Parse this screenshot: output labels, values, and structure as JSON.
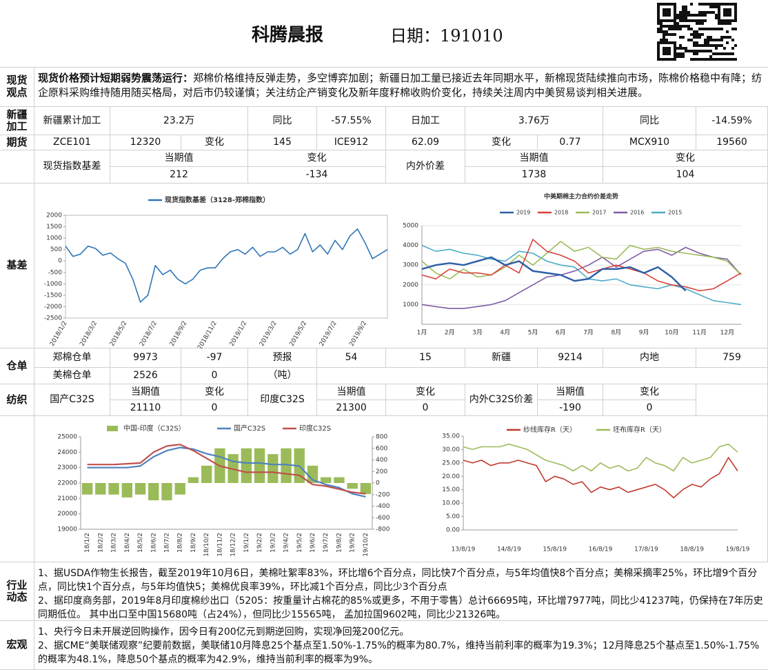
{
  "header": {
    "title": "科腾晨报",
    "date": "日期：191010"
  },
  "spot_view": {
    "label": "现货观点",
    "lead": "现货价格预计短期弱势震荡运行：",
    "text": "郑棉价格维持反弹走势，多空博弈加剧；新疆日加工量已接近去年同期水平，新棉现货陆续推向市场，陈棉价格稳中有降；纺企原料采购维持随用随买格局，对后市仍较谨慎；关注纺企产销变化及新年度籽棉收购价变化，持续关注周内中美贸易谈判相关进展。"
  },
  "xinjiang": {
    "label": "新疆加工",
    "cells": [
      "新疆累计加工",
      "23.2万",
      "同比",
      "-57.55%",
      "日加工",
      "3.76万",
      "同比",
      "-14.59%"
    ]
  },
  "futures": {
    "label": "期货",
    "cells": [
      "ZCE101",
      12320,
      "变化",
      145,
      "ICE912",
      62.09,
      "变化",
      0.77,
      "MCX910",
      19560
    ]
  },
  "basis_table": {
    "cells": [
      "现货指数基差",
      "当期值",
      212,
      "变化",
      -134,
      "内外价差",
      "当期值",
      1738,
      "变化",
      104
    ]
  },
  "basis": {
    "label": "基差"
  },
  "warrants": {
    "label": "仓单",
    "row1": [
      "郑棉仓单",
      9973,
      -97,
      "预报",
      54,
      15,
      "新疆",
      9214,
      "内地",
      759
    ],
    "row2": [
      "美棉仓单",
      2526,
      0,
      "（吨）"
    ]
  },
  "textile": {
    "label": "纺织",
    "cells": [
      "国产C32S",
      "当期值",
      21110,
      "变化",
      0,
      "印度C32S",
      "当期值",
      21300,
      "变化",
      0,
      "内外C32S价差",
      "当期值",
      -190,
      "变化",
      0
    ]
  },
  "industry": {
    "label": "行业动态",
    "paragraphs": [
      "1、据USDA作物生长报告，截至2019年10月6日，美棉吐絮率83%，环比增6个百分点，同比快7个百分点，与5年均值快8个百分点；美棉采摘率25%，环比增9个百分点，同比快1个百分点，与5年均值快5；美棉优良率39%，环比减1个百分点，同比少3个百分点",
      "2、据印度商务部，2019年8月印度棉纱出口（5205：按重量计占棉花的85%或更多，不用于零售）总计66695吨，环比增7977吨，同比少41237吨，仍保持在7年历史同期低位。 其中出口至中国15680吨（占24%），但同比少15565吨， 孟加拉国9602吨，同比少21326吨。"
    ]
  },
  "macro": {
    "label": "宏观",
    "paragraphs": [
      "1、央行今日未开展逆回购操作，因今日有200亿元到期逆回购，实现净回笼200亿元。",
      "2、据CME“美联储观察”纪要前数据，美联储10月降息25个基点至1.50%-1.75%的概率为80.7%，维持当前利率的概率为19.3%；12月降息25个基点至1.50%-1.75%的概率为48.1%，降息50个基点的概率为42.9%，维持当前利率的概率为9%。"
    ]
  },
  "chart_data": [
    {
      "type": "line",
      "categories": [
        "2018/1/2",
        null,
        null,
        null,
        "2018/3/2",
        null,
        null,
        null,
        "2018/5/2",
        null,
        null,
        null,
        "2018/7/2",
        null,
        null,
        null,
        "2018/9/2",
        null,
        null,
        null,
        "2018/11/2",
        null,
        null,
        null,
        "2019/1/2",
        null,
        null,
        null,
        "2019/3/2",
        null,
        null,
        null,
        "2019/5/2",
        null,
        null,
        null,
        "2019/7/2",
        null,
        null,
        null,
        "2019/9/2",
        null,
        null,
        null
      ],
      "series": [
        {
          "name": "现货指数基差（3128-郑棉指数）",
          "color": "#2e75b6",
          "values": [
            650,
            200,
            300,
            650,
            550,
            250,
            350,
            100,
            -100,
            -800,
            -1800,
            -1500,
            -200,
            -600,
            -400,
            -800,
            -1000,
            -800,
            -400,
            -300,
            -300,
            100,
            400,
            500,
            300,
            600,
            200,
            400,
            400,
            600,
            300,
            500,
            1200,
            400,
            700,
            300,
            900,
            500,
            1100,
            1400,
            800,
            100,
            300,
            500
          ]
        }
      ],
      "ylim": [
        -2500,
        2000
      ],
      "yticks": [
        -2500,
        -2000,
        -1500,
        -1000,
        -500,
        0,
        500,
        1000,
        1500,
        2000
      ]
    },
    {
      "type": "line",
      "title": "中美期棉主力合约价差走势",
      "categories": [
        "1月",
        null,
        "2月",
        null,
        "3月",
        null,
        "4月",
        null,
        "5月",
        null,
        "6月",
        null,
        "7月",
        null,
        "8月",
        null,
        "9月",
        null,
        "10月",
        null,
        "11月",
        null,
        "12月",
        null
      ],
      "series": [
        {
          "name": "2019",
          "color": "#2e5fa6",
          "values": [
            2800,
            3000,
            3100,
            3000,
            3200,
            3400,
            3000,
            3200,
            2700,
            2600,
            2500,
            2200,
            2300,
            2800,
            2800,
            2900,
            2600,
            2900,
            2400,
            1700,
            null,
            null,
            null,
            null
          ]
        },
        {
          "name": "2018",
          "color": "#d9413a",
          "values": [
            2500,
            2300,
            2800,
            2600,
            2600,
            2500,
            3000,
            2600,
            4300,
            3700,
            3500,
            3200,
            2600,
            2800,
            3000,
            2800,
            2600,
            2200,
            2000,
            1900,
            1700,
            1800,
            2200,
            2600
          ]
        },
        {
          "name": "2017",
          "color": "#9bbb59",
          "values": [
            3200,
            2600,
            2300,
            2800,
            2400,
            2500,
            2900,
            3500,
            3000,
            3600,
            4200,
            3700,
            3900,
            3400,
            3300,
            4000,
            3800,
            3900,
            3700,
            3600,
            3500,
            3400,
            3200,
            2500
          ]
        },
        {
          "name": "2016",
          "color": "#7f5ba6",
          "values": [
            1000,
            900,
            800,
            800,
            900,
            1000,
            1200,
            1600,
            2000,
            2400,
            2500,
            2700,
            3000,
            3400,
            2900,
            3300,
            3700,
            3800,
            3500,
            3900,
            3600,
            3400,
            3300,
            2500
          ]
        },
        {
          "name": "2015",
          "color": "#4bacc6",
          "values": [
            4000,
            3700,
            3800,
            3600,
            3500,
            3300,
            3200,
            3700,
            3600,
            3200,
            3000,
            2900,
            2300,
            2200,
            2300,
            2000,
            1900,
            1800,
            2000,
            1800,
            1500,
            1200,
            1100,
            1000
          ]
        }
      ],
      "ylim": [
        0,
        5000
      ],
      "yticks": [
        1000,
        2000,
        3000,
        4000,
        5000
      ],
      "grid": true
    },
    {
      "type": "combo",
      "categories": [
        "18/1/2",
        "18/2/2",
        "18/3/2",
        "18/4/2",
        "18/5/2",
        "18/6/2",
        "18/7/2",
        "18/8/2",
        "18/9/2",
        "18/10/2",
        "18/11/2",
        "18/12/2",
        "19/1/2",
        "19/2/2",
        "19/3/2",
        "19/4/2",
        "19/5/2",
        "19/6/2",
        "19/7/2",
        "19/8/2",
        "19/9/2",
        "19/10/2"
      ],
      "series": [
        {
          "name": "中国-印度（C32S）",
          "type": "bar",
          "axis": "y2",
          "color": "#9bbb59",
          "values": [
            -200,
            -200,
            -200,
            -250,
            -200,
            -300,
            -300,
            -200,
            100,
            300,
            600,
            500,
            600,
            600,
            500,
            600,
            600,
            300,
            100,
            100,
            -100,
            -190
          ]
        },
        {
          "name": "国产C32S",
          "type": "line",
          "color": "#4f81bd",
          "values": [
            23000,
            23000,
            23000,
            23000,
            23100,
            23700,
            24100,
            24300,
            24200,
            23900,
            23700,
            23400,
            23300,
            23300,
            23200,
            23200,
            23100,
            22200,
            21900,
            21700,
            21300,
            21110
          ]
        },
        {
          "name": "印度C32S",
          "type": "line",
          "color": "#c0504d",
          "values": [
            23200,
            23200,
            23200,
            23250,
            23300,
            24000,
            24400,
            24500,
            24100,
            23600,
            23100,
            22900,
            22700,
            22700,
            22700,
            22600,
            22500,
            21900,
            21800,
            21600,
            21400,
            21300
          ]
        }
      ],
      "ylim": [
        19000,
        25000
      ],
      "yticks": [
        19000,
        20000,
        21000,
        22000,
        23000,
        24000,
        25000
      ],
      "y2lim": [
        -800,
        800
      ],
      "y2ticks": [
        -800,
        -600,
        -400,
        -200,
        0,
        200,
        400,
        600,
        800
      ]
    },
    {
      "type": "line",
      "categories": [
        "13/8/19",
        null,
        null,
        null,
        null,
        "14/8/19",
        null,
        null,
        null,
        null,
        "15/8/19",
        null,
        null,
        null,
        null,
        "16/8/19",
        null,
        null,
        null,
        null,
        "17/8/19",
        null,
        null,
        null,
        null,
        "18/8/19",
        null,
        null,
        null,
        null,
        "19/8/19"
      ],
      "series": [
        {
          "name": "纱线库存R（天）",
          "color": "#c0392b",
          "values": [
            26,
            25,
            26,
            24,
            25,
            25,
            26,
            25,
            24,
            18,
            20,
            19,
            17,
            18,
            14,
            16,
            15,
            16,
            14,
            15,
            16,
            17,
            15,
            12,
            15,
            17,
            16,
            19,
            21,
            27,
            22
          ]
        },
        {
          "name": "坯布库存R（天）",
          "color": "#9bbb59",
          "values": [
            31,
            30,
            31,
            31,
            31,
            32,
            31,
            30,
            28,
            26,
            25,
            24,
            22,
            24,
            22,
            25,
            23,
            24,
            22,
            23,
            27,
            25,
            24,
            22,
            27,
            25,
            26,
            27,
            31,
            32,
            29
          ]
        }
      ],
      "ylim": [
        0,
        35
      ],
      "yticks": [
        {
          "value": 0,
          "label": "0.00"
        },
        {
          "value": 5,
          "label": "5.00"
        },
        {
          "value": 10,
          "label": "10.00"
        },
        {
          "value": 15,
          "label": "15.00"
        },
        {
          "value": 20,
          "label": "20.00"
        },
        {
          "value": 25,
          "label": "25.00"
        },
        {
          "value": 30,
          "label": "30.00"
        },
        {
          "value": 35,
          "label": "35.00"
        }
      ]
    }
  ]
}
